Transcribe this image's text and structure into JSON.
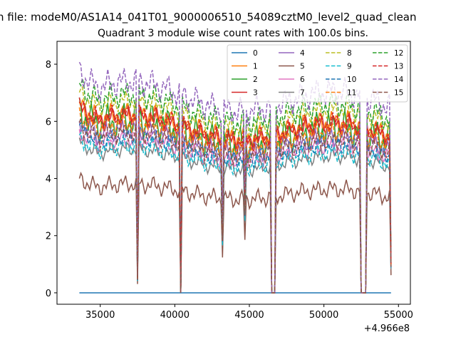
{
  "chart_data": {
    "type": "line",
    "suptitle": "n file: modeM0/AS1A14_041T01_9000006510_54089cztM0_level2_quad_clean",
    "title": "Quadrant 3 module wise count rates with 100.0s bins.",
    "xlabel": "",
    "ylabel": "",
    "x_offset_label": "+4.966e8",
    "xlim": [
      32100,
      55800
    ],
    "ylim": [
      -0.4,
      8.8
    ],
    "x_ticks": [
      35000,
      40000,
      45000,
      50000,
      55000
    ],
    "y_ticks": [
      0,
      2,
      4,
      6,
      8
    ],
    "grid": false,
    "legend_placement": "top-right",
    "legend_columns": 4,
    "x_range": [
      33600,
      54500
    ],
    "dropouts": [
      {
        "x": 37450,
        "value": 0.5
      },
      {
        "x": 40350,
        "value": 0.0
      },
      {
        "x": 43150,
        "value": 2.0
      },
      {
        "x": 44700,
        "value": 3.0
      },
      {
        "x": 46450,
        "value": 0.0
      },
      {
        "x": 46550,
        "value": 0.0
      },
      {
        "x": 46650,
        "value": 0.0
      },
      {
        "x": 52500,
        "value": 0.0
      },
      {
        "x": 52600,
        "value": 0.0
      },
      {
        "x": 52700,
        "value": 0.0
      },
      {
        "x": 52800,
        "value": 0.0
      },
      {
        "x": 54500,
        "value": 1.0
      }
    ],
    "series": [
      {
        "name": "0",
        "color": "#1f77b4",
        "dash": "solid",
        "base": 0.0,
        "amp": 0.0,
        "phase": 0.0
      },
      {
        "name": "1",
        "color": "#ff7f0e",
        "dash": "solid",
        "base": 5.6,
        "amp": 0.45,
        "phase": 1.1
      },
      {
        "name": "2",
        "color": "#2ca02c",
        "dash": "solid",
        "base": 5.4,
        "amp": 0.7,
        "phase": 2.3
      },
      {
        "name": "3",
        "color": "#d62728",
        "dash": "solid",
        "base": 5.5,
        "amp": 0.4,
        "phase": 0.4
      },
      {
        "name": "4",
        "color": "#9467bd",
        "dash": "solid",
        "base": 5.1,
        "amp": 0.4,
        "phase": 3.0
      },
      {
        "name": "5",
        "color": "#8c564b",
        "dash": "solid",
        "base": 3.4,
        "amp": 0.35,
        "phase": 1.7
      },
      {
        "name": "6",
        "color": "#e377c2",
        "dash": "solid",
        "base": 4.8,
        "amp": 0.35,
        "phase": 2.9
      },
      {
        "name": "7",
        "color": "#7f7f7f",
        "dash": "solid",
        "base": 4.5,
        "amp": 0.3,
        "phase": 0.9
      },
      {
        "name": "8",
        "color": "#bcbd22",
        "dash": "dashed",
        "base": 6.0,
        "amp": 0.4,
        "phase": 1.5
      },
      {
        "name": "9",
        "color": "#17becf",
        "dash": "dashed",
        "base": 4.6,
        "amp": 0.35,
        "phase": 2.0
      },
      {
        "name": "10",
        "color": "#1f77b4",
        "dash": "dashed",
        "base": 4.9,
        "amp": 0.35,
        "phase": 0.2
      },
      {
        "name": "11",
        "color": "#ff7f0e",
        "dash": "dashed",
        "base": 5.3,
        "amp": 0.4,
        "phase": 2.6
      },
      {
        "name": "12",
        "color": "#2ca02c",
        "dash": "dashed",
        "base": 6.2,
        "amp": 0.5,
        "phase": 1.2
      },
      {
        "name": "13",
        "color": "#d62728",
        "dash": "dashed",
        "base": 5.6,
        "amp": 0.4,
        "phase": 0.7
      },
      {
        "name": "14",
        "color": "#9467bd",
        "dash": "dashed",
        "base": 6.6,
        "amp": 0.55,
        "phase": 2.2
      },
      {
        "name": "15",
        "color": "#8c564b",
        "dash": "dashed",
        "base": 5.0,
        "amp": 0.4,
        "phase": 1.9
      }
    ]
  }
}
